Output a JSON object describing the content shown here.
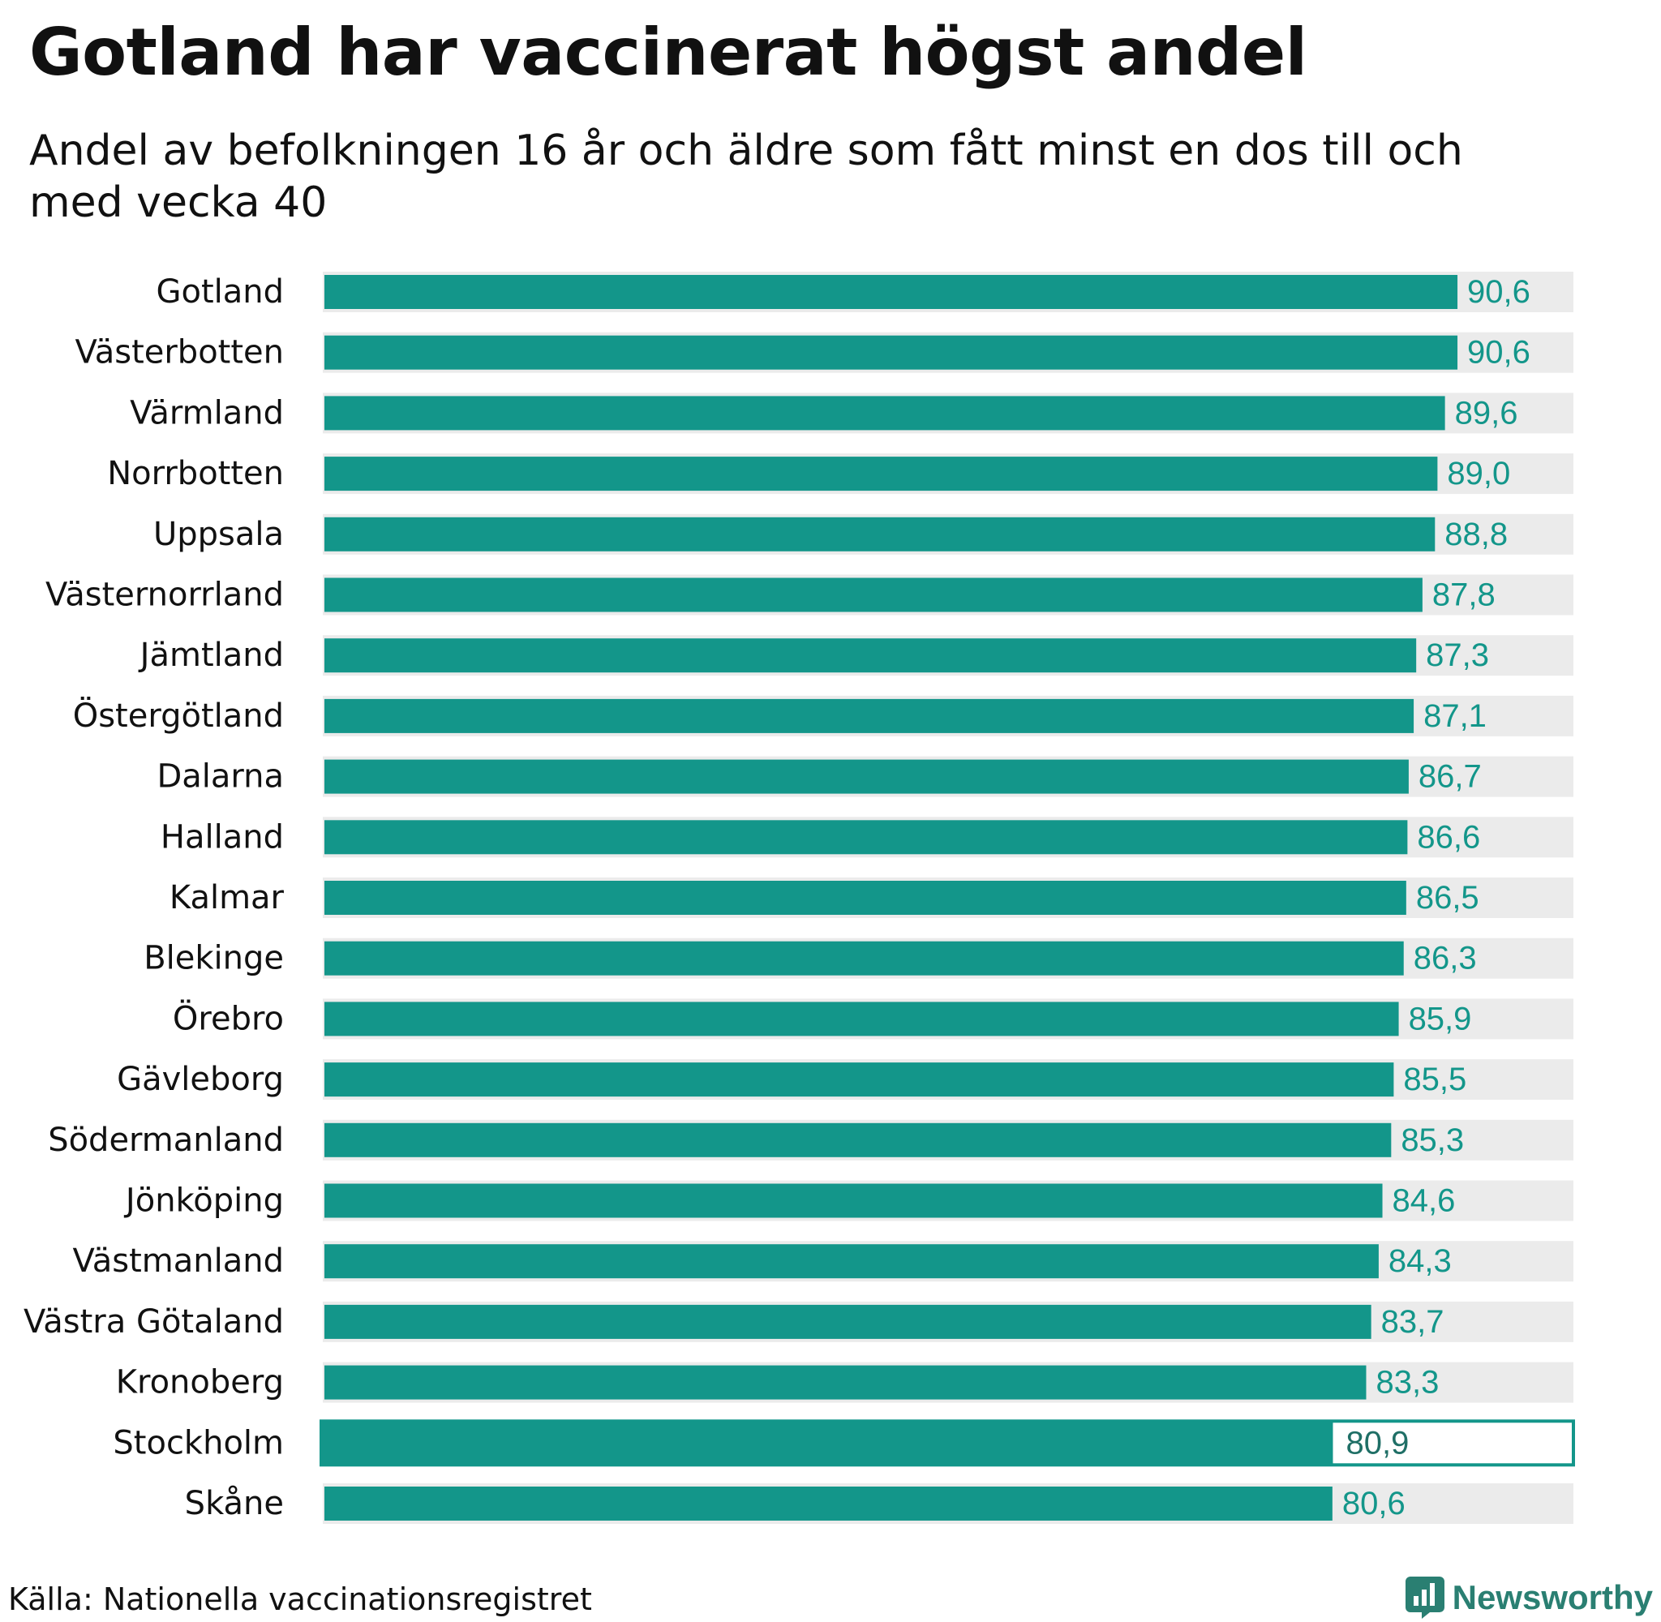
{
  "title": "Gotland har vaccinerat högst andel",
  "subtitle": "Andel av befolkningen 16 år och äldre som fått minst en dos till och med vecka 40",
  "source": "Källa: Nationella vaccinationsregistret",
  "brand": "Newsworthy",
  "colors": {
    "bar": "#13968a",
    "track": "#ebebeb",
    "value_text": "#13968a",
    "highlight_text": "#1f6f66"
  },
  "chart_data": {
    "type": "bar",
    "orientation": "horizontal",
    "xlim": [
      0,
      100
    ],
    "highlight": "Stockholm",
    "categories": [
      "Gotland",
      "Västerbotten",
      "Värmland",
      "Norrbotten",
      "Uppsala",
      "Västernorrland",
      "Jämtland",
      "Östergötland",
      "Dalarna",
      "Halland",
      "Kalmar",
      "Blekinge",
      "Örebro",
      "Gävleborg",
      "Södermanland",
      "Jönköping",
      "Västmanland",
      "Västra Götaland",
      "Kronoberg",
      "Stockholm",
      "Skåne"
    ],
    "values": [
      90.6,
      90.6,
      89.6,
      89.0,
      88.8,
      87.8,
      87.3,
      87.1,
      86.7,
      86.6,
      86.5,
      86.3,
      85.9,
      85.5,
      85.3,
      84.6,
      84.3,
      83.7,
      83.3,
      80.9,
      80.6
    ],
    "value_labels": [
      "90,6",
      "90,6",
      "89,6",
      "89,0",
      "88,8",
      "87,8",
      "87,3",
      "87,1",
      "86,7",
      "86,6",
      "86,5",
      "86,3",
      "85,9",
      "85,5",
      "85,3",
      "84,6",
      "84,3",
      "83,7",
      "83,3",
      "80,9",
      "80,6"
    ]
  }
}
